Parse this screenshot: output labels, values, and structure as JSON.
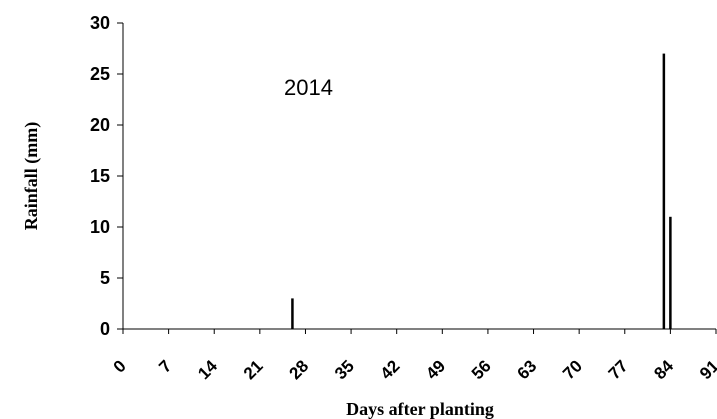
{
  "chart_data": {
    "type": "bar",
    "title": "",
    "xlabel": "Days after planting",
    "ylabel": "Rainfall (mm)",
    "annotation": "2014",
    "xlim": [
      0,
      91
    ],
    "ylim": [
      0,
      30
    ],
    "x_ticks": [
      0,
      7,
      14,
      21,
      28,
      35,
      42,
      49,
      56,
      63,
      70,
      77,
      84,
      91
    ],
    "y_ticks": [
      0,
      5,
      10,
      15,
      20,
      25,
      30
    ],
    "grid": false,
    "series": [
      {
        "x": [
          26,
          83,
          84
        ],
        "values": [
          3,
          27,
          11
        ]
      }
    ],
    "bar_color": "#000000"
  }
}
